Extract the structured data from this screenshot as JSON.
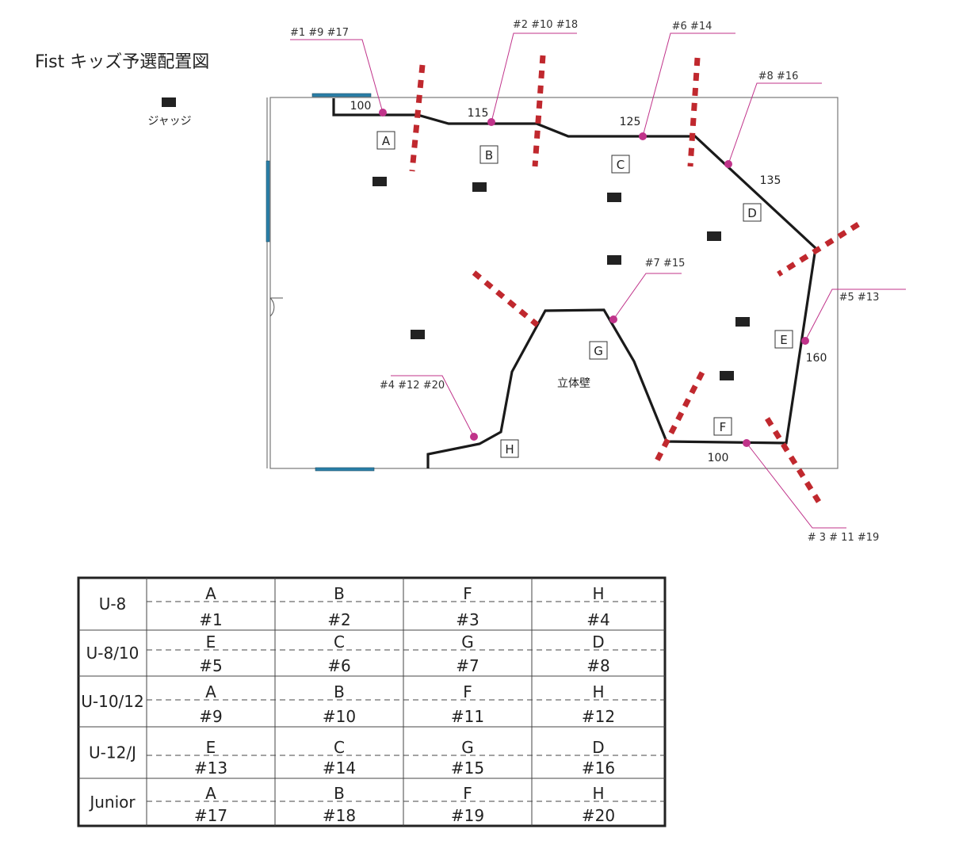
{
  "title": "Fist キッズ予選配置図",
  "legend": {
    "judge_label": "ジャッジ",
    "judge_icon": "judge-square"
  },
  "colors": {
    "wall": "#1a1a1a",
    "divider": "#c0282e",
    "marker": "#c0338a",
    "opening": "#2a7fa8",
    "room": "#777777"
  },
  "zones": [
    "A",
    "B",
    "C",
    "D",
    "E",
    "F",
    "G",
    "H"
  ],
  "wall_lengths": [
    "100",
    "115",
    "125",
    "135",
    "160",
    "100"
  ],
  "center_label": "立体壁",
  "callouts": [
    "#1  #9  #17",
    "#2  #10 #18",
    "#6  #14",
    "#8  #16",
    "#7 #15",
    "#5  #13",
    "#4 #12  #20",
    "# 3 # 11  #19"
  ],
  "table": {
    "rows": [
      {
        "category": "U-8",
        "cells": [
          [
            "A",
            "#1"
          ],
          [
            "B",
            "#2"
          ],
          [
            "F",
            "#3"
          ],
          [
            "H",
            "#4"
          ]
        ]
      },
      {
        "category": "U-8/10",
        "cells": [
          [
            "E",
            "#5"
          ],
          [
            "C",
            "#6"
          ],
          [
            "G",
            "#7"
          ],
          [
            "D",
            "#8"
          ]
        ]
      },
      {
        "category": "U-10/12",
        "cells": [
          [
            "A",
            "#9"
          ],
          [
            "B",
            "#10"
          ],
          [
            "F",
            "#11"
          ],
          [
            "H",
            "#12"
          ]
        ]
      },
      {
        "category": "U-12/J",
        "cells": [
          [
            "E",
            "#13"
          ],
          [
            "C",
            "#14"
          ],
          [
            "G",
            "#15"
          ],
          [
            "D",
            "#16"
          ]
        ]
      },
      {
        "category": "Junior",
        "cells": [
          [
            "A",
            "#17"
          ],
          [
            "B",
            "#18"
          ],
          [
            "F",
            "#19"
          ],
          [
            "H",
            "#20"
          ]
        ]
      }
    ]
  }
}
